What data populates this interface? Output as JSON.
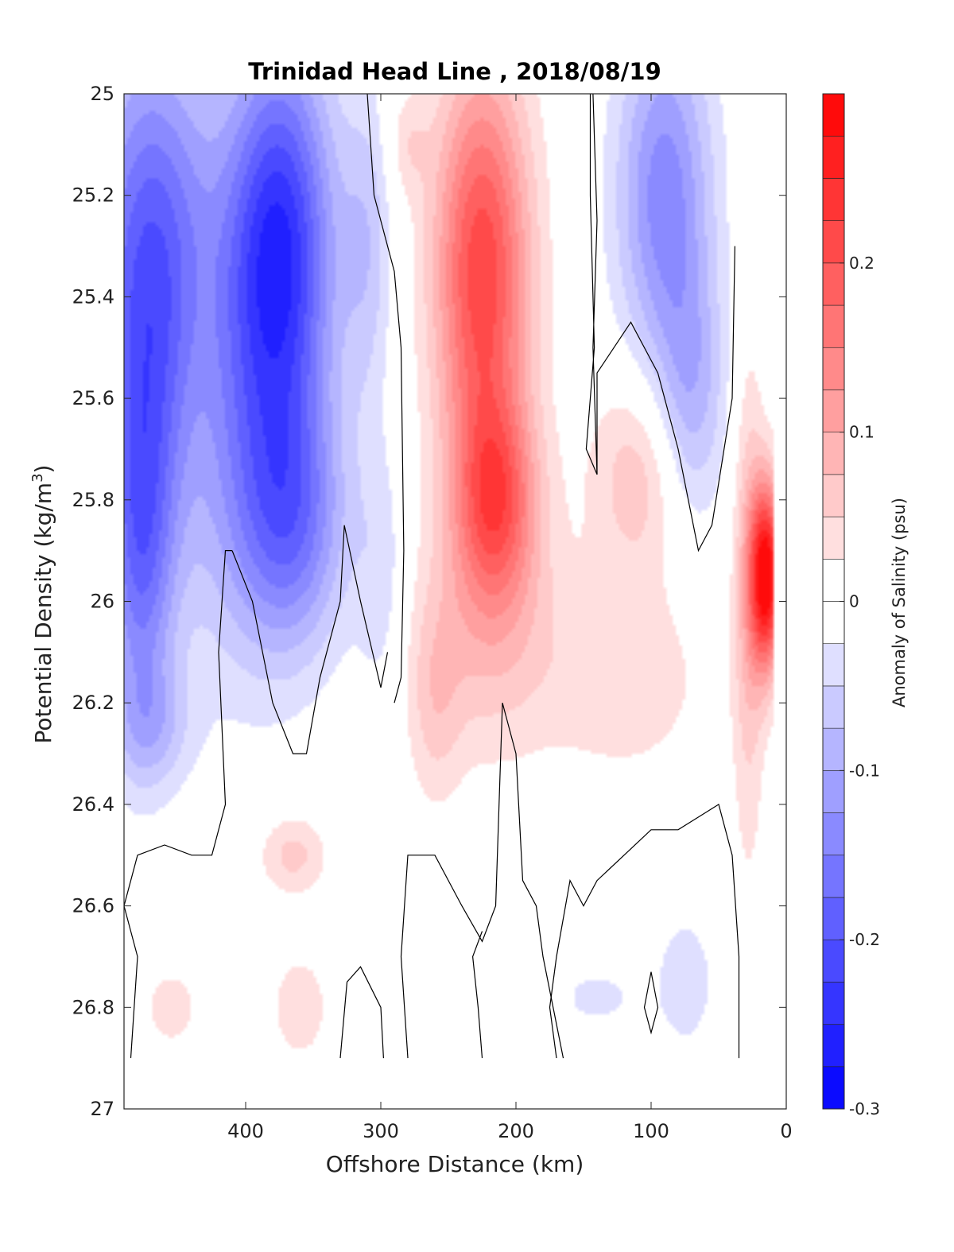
{
  "chart_data": {
    "type": "contour",
    "title": "Trinidad Head Line , 2018/08/19",
    "xlabel": "Offshore Distance (km)",
    "ylabel": "Potential Density (kg/m³)",
    "ylabel_base": "Potential Density (kg/m",
    "ylabel_sup": "3",
    "ylabel_tail": ")",
    "xlim": [
      490,
      0
    ],
    "x_reversed": true,
    "ylim": [
      25,
      27
    ],
    "y_reversed": true,
    "x_ticks": [
      400,
      300,
      200,
      100,
      0
    ],
    "x_tick_labels": [
      "400",
      "300",
      "200",
      "100",
      "0"
    ],
    "y_ticks": [
      25,
      25.2,
      25.4,
      25.6,
      25.8,
      26,
      26.2,
      26.4,
      26.6,
      26.8,
      27
    ],
    "y_tick_labels": [
      "25",
      "25.2",
      "25.4",
      "25.6",
      "25.8",
      "26",
      "26.2",
      "26.4",
      "26.6",
      "26.8",
      "27"
    ],
    "colorbar": {
      "label": "Anomaly of Salinity (psu)",
      "min": -0.3,
      "max": 0.3,
      "ticks": [
        0.2,
        0.1,
        0,
        -0.1,
        -0.2,
        -0.3
      ],
      "tick_labels": [
        "0.2",
        "0.1",
        "0",
        "-0.1",
        "-0.2",
        "-0.3"
      ],
      "levels": [
        -0.3,
        -0.275,
        -0.25,
        -0.225,
        -0.2,
        -0.175,
        -0.15,
        -0.125,
        -0.1,
        -0.075,
        -0.05,
        -0.025,
        0,
        0.025,
        0.05,
        0.075,
        0.1,
        0.125,
        0.15,
        0.175,
        0.2,
        0.225,
        0.25,
        0.275,
        0.3
      ],
      "low_color": "#0000ff",
      "mid_color": "#ffffff",
      "high_color": "#ff0000"
    },
    "blobs": [
      {
        "x": 470,
        "y": 25.35,
        "rx": 45,
        "ry": 0.45,
        "v": -0.2
      },
      {
        "x": 478,
        "y": 25.9,
        "rx": 25,
        "ry": 0.35,
        "v": -0.15
      },
      {
        "x": 375,
        "y": 25.3,
        "rx": 40,
        "ry": 0.4,
        "v": -0.24
      },
      {
        "x": 365,
        "y": 25.85,
        "rx": 40,
        "ry": 0.25,
        "v": -0.13
      },
      {
        "x": 435,
        "y": 25.55,
        "rx": 25,
        "ry": 0.3,
        "v": 0.025
      },
      {
        "x": 405,
        "y": 25.7,
        "rx": 50,
        "ry": 0.45,
        "v": -0.08
      },
      {
        "x": 470,
        "y": 26.25,
        "rx": 30,
        "ry": 0.12,
        "v": -0.06
      },
      {
        "x": 310,
        "y": 25.3,
        "rx": 18,
        "ry": 0.3,
        "v": -0.06
      },
      {
        "x": 300,
        "y": 25.95,
        "rx": 18,
        "ry": 0.25,
        "v": -0.04
      },
      {
        "x": 225,
        "y": 25.35,
        "rx": 35,
        "ry": 0.4,
        "v": 0.22
      },
      {
        "x": 215,
        "y": 25.8,
        "rx": 30,
        "ry": 0.2,
        "v": 0.16
      },
      {
        "x": 220,
        "y": 26.05,
        "rx": 50,
        "ry": 0.25,
        "v": 0.07
      },
      {
        "x": 260,
        "y": 26.2,
        "rx": 20,
        "ry": 0.2,
        "v": 0.05
      },
      {
        "x": 280,
        "y": 25.1,
        "rx": 15,
        "ry": 0.1,
        "v": 0.04
      },
      {
        "x": 110,
        "y": 25.75,
        "rx": 35,
        "ry": 0.2,
        "v": 0.07
      },
      {
        "x": 120,
        "y": 26.15,
        "rx": 60,
        "ry": 0.2,
        "v": 0.045
      },
      {
        "x": 90,
        "y": 25.2,
        "rx": 35,
        "ry": 0.35,
        "v": -0.14
      },
      {
        "x": 70,
        "y": 25.6,
        "rx": 25,
        "ry": 0.25,
        "v": -0.08
      },
      {
        "x": 15,
        "y": 25.95,
        "rx": 12,
        "ry": 0.18,
        "v": 0.3
      },
      {
        "x": 28,
        "y": 26.0,
        "rx": 12,
        "ry": 0.5,
        "v": 0.07
      },
      {
        "x": 365,
        "y": 26.5,
        "rx": 25,
        "ry": 0.08,
        "v": 0.06
      },
      {
        "x": 360,
        "y": 26.8,
        "rx": 20,
        "ry": 0.1,
        "v": 0.05
      },
      {
        "x": 455,
        "y": 26.8,
        "rx": 25,
        "ry": 0.1,
        "v": 0.035
      },
      {
        "x": 75,
        "y": 26.75,
        "rx": 25,
        "ry": 0.15,
        "v": -0.04
      },
      {
        "x": 140,
        "y": 26.78,
        "rx": 30,
        "ry": 0.06,
        "v": -0.035
      }
    ],
    "zero_contours": [
      [
        [
          310,
          25.0
        ],
        [
          305,
          25.2
        ],
        [
          290,
          25.35
        ],
        [
          285,
          25.5
        ],
        [
          283,
          25.9
        ],
        [
          285,
          26.15
        ],
        [
          290,
          26.2
        ]
      ],
      [
        [
          145,
          25.0
        ],
        [
          145,
          25.2
        ],
        [
          142,
          25.5
        ],
        [
          148,
          25.7
        ],
        [
          140,
          25.75
        ],
        [
          143,
          25.5
        ],
        [
          140,
          25.25
        ],
        [
          143,
          25.0
        ]
      ],
      [
        [
          38,
          25.3
        ],
        [
          40,
          25.6
        ],
        [
          55,
          25.85
        ],
        [
          65,
          25.9
        ],
        [
          80,
          25.7
        ],
        [
          95,
          25.55
        ],
        [
          115,
          25.45
        ],
        [
          140,
          25.55
        ],
        [
          140,
          25.75
        ]
      ],
      [
        [
          410,
          25.9
        ],
        [
          415,
          25.9
        ],
        [
          420,
          26.1
        ],
        [
          415,
          26.4
        ],
        [
          425,
          26.5
        ],
        [
          440,
          26.5
        ],
        [
          460,
          26.48
        ],
        [
          480,
          26.5
        ],
        [
          490,
          26.6
        ],
        [
          480,
          26.7
        ],
        [
          485,
          26.9
        ]
      ],
      [
        [
          410,
          25.9
        ],
        [
          395,
          26.0
        ],
        [
          380,
          26.2
        ],
        [
          365,
          26.3
        ],
        [
          355,
          26.3
        ],
        [
          345,
          26.15
        ],
        [
          330,
          26.0
        ],
        [
          327,
          25.85
        ],
        [
          315,
          26.0
        ],
        [
          300,
          26.17
        ],
        [
          295,
          26.1
        ]
      ],
      [
        [
          280,
          26.9
        ],
        [
          285,
          26.7
        ],
        [
          280,
          26.5
        ],
        [
          260,
          26.5
        ],
        [
          240,
          26.6
        ],
        [
          225,
          26.67
        ],
        [
          215,
          26.6
        ],
        [
          210,
          26.2
        ],
        [
          200,
          26.3
        ],
        [
          195,
          26.55
        ],
        [
          185,
          26.6
        ],
        [
          180,
          26.7
        ],
        [
          165,
          26.9
        ]
      ],
      [
        [
          225,
          26.9
        ],
        [
          228,
          26.8
        ],
        [
          232,
          26.7
        ],
        [
          225,
          26.65
        ]
      ],
      [
        [
          170,
          26.9
        ],
        [
          175,
          26.8
        ],
        [
          170,
          26.7
        ],
        [
          160,
          26.55
        ],
        [
          150,
          26.6
        ],
        [
          140,
          26.55
        ],
        [
          120,
          26.5
        ],
        [
          100,
          26.45
        ],
        [
          80,
          26.45
        ],
        [
          50,
          26.4
        ],
        [
          40,
          26.5
        ],
        [
          35,
          26.7
        ],
        [
          35,
          26.9
        ]
      ],
      [
        [
          330,
          26.9
        ],
        [
          325,
          26.75
        ],
        [
          315,
          26.72
        ],
        [
          300,
          26.8
        ],
        [
          298,
          26.9
        ]
      ],
      [
        [
          100,
          26.73
        ],
        [
          95,
          26.8
        ],
        [
          100,
          26.85
        ],
        [
          105,
          26.8
        ],
        [
          100,
          26.73
        ]
      ]
    ]
  }
}
